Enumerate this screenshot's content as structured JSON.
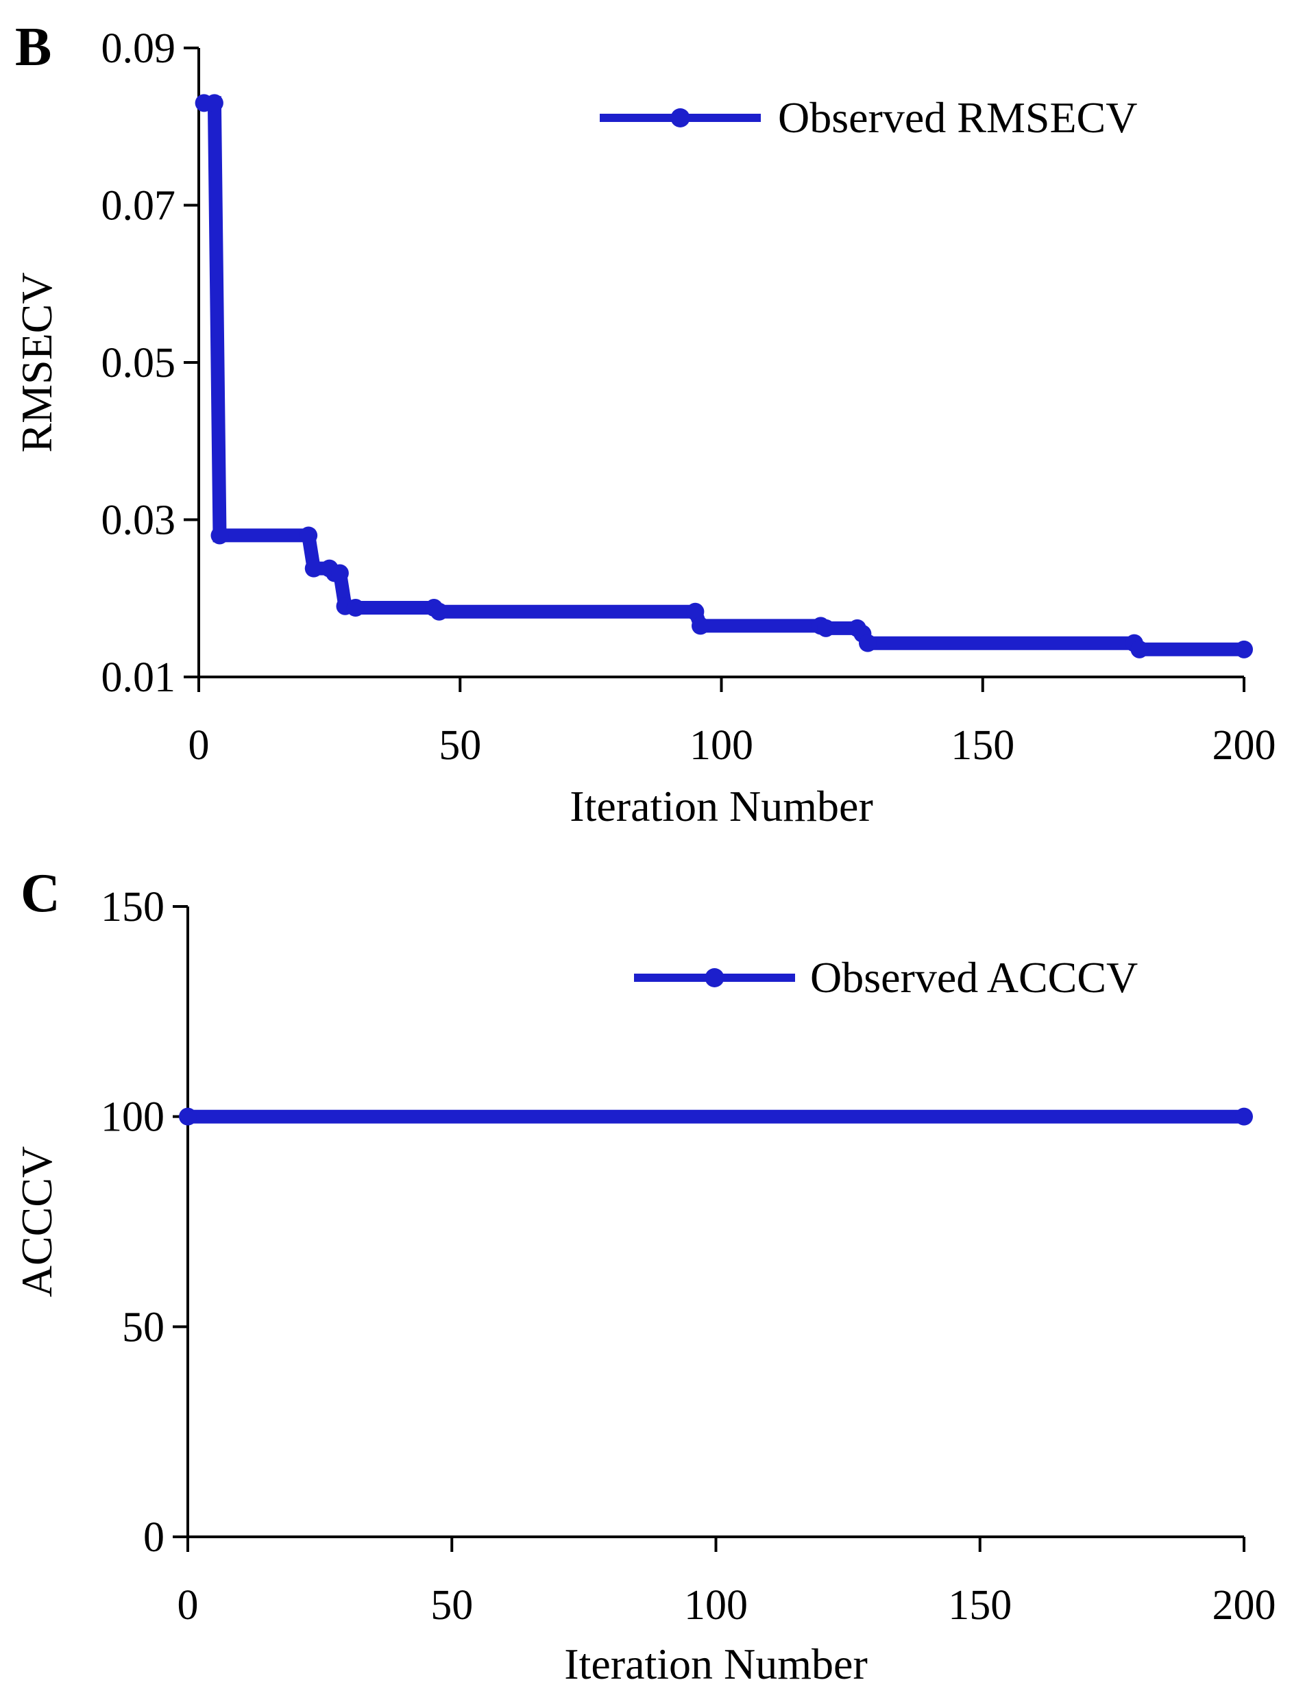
{
  "series_color": "#1c1fcc",
  "chart_data": [
    {
      "panel_label": "B",
      "type": "line",
      "title": "",
      "xlabel": "Iteration Number",
      "ylabel": "RMSECV",
      "xlim": [
        0,
        200
      ],
      "ylim": [
        0.01,
        0.09
      ],
      "xticks": [
        0,
        50,
        100,
        150,
        200
      ],
      "xtick_labels": [
        "0",
        "50",
        "100",
        "150",
        "200"
      ],
      "yticks": [
        0.01,
        0.03,
        0.05,
        0.07,
        0.09
      ],
      "ytick_labels": [
        "0.01",
        "0.03",
        "0.05",
        "0.07",
        "0.09"
      ],
      "legend": "top-right",
      "series": [
        {
          "name": "Observed RMSECV",
          "x": [
            1,
            3,
            4,
            21,
            22,
            25,
            26,
            27,
            28,
            30,
            45,
            46,
            95,
            96,
            119,
            120,
            126,
            127,
            128,
            179,
            180,
            200
          ],
          "y": [
            0.083,
            0.083,
            0.028,
            0.028,
            0.0238,
            0.0238,
            0.0232,
            0.0232,
            0.019,
            0.0188,
            0.0188,
            0.0183,
            0.0183,
            0.0165,
            0.0165,
            0.0162,
            0.0162,
            0.0155,
            0.0143,
            0.0143,
            0.0135,
            0.0135
          ]
        }
      ]
    },
    {
      "panel_label": "C",
      "type": "line",
      "title": "",
      "xlabel": "Iteration Number",
      "ylabel": "ACCCV",
      "xlim": [
        0,
        200
      ],
      "ylim": [
        0,
        150
      ],
      "xticks": [
        0,
        50,
        100,
        150,
        200
      ],
      "xtick_labels": [
        "0",
        "50",
        "100",
        "150",
        "200"
      ],
      "yticks": [
        0,
        50,
        100,
        150
      ],
      "ytick_labels": [
        "0",
        "50",
        "100",
        "150"
      ],
      "legend": "top-right",
      "series": [
        {
          "name": "Observed ACCCV",
          "x": [
            0,
            200
          ],
          "y": [
            100,
            100
          ]
        }
      ]
    }
  ]
}
